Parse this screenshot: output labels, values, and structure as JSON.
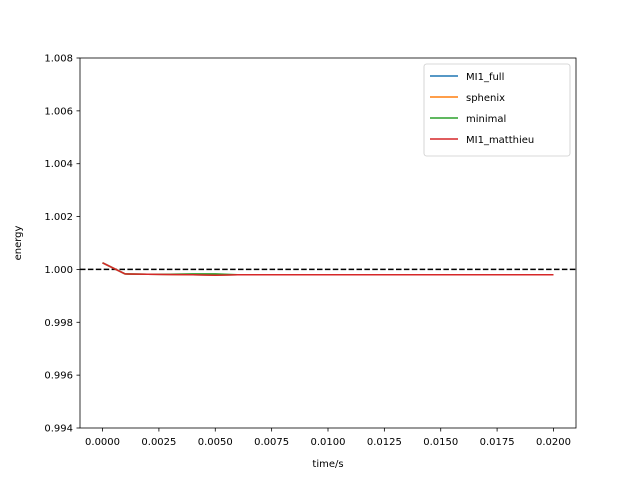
{
  "chart_data": {
    "type": "line",
    "title": "",
    "xlabel": "time/s",
    "ylabel": "energy",
    "xlim": [
      -0.001,
      0.021
    ],
    "ylim": [
      0.994,
      1.008
    ],
    "x_ticks": [
      0.0,
      0.0025,
      0.005,
      0.0075,
      0.01,
      0.0125,
      0.015,
      0.0175,
      0.02
    ],
    "x_tick_labels": [
      "0.0000",
      "0.0025",
      "0.0050",
      "0.0075",
      "0.0100",
      "0.0125",
      "0.0150",
      "0.0175",
      "0.0200"
    ],
    "y_ticks": [
      0.994,
      0.996,
      0.998,
      1.0,
      1.002,
      1.004,
      1.006,
      1.008
    ],
    "y_tick_labels": [
      "0.994",
      "0.996",
      "0.998",
      "1.000",
      "1.002",
      "1.004",
      "1.006",
      "1.008"
    ],
    "grid": false,
    "legend_position": "top-right",
    "reference_line": {
      "y": 1.0,
      "style": "dashed",
      "color": "#000000"
    },
    "series": [
      {
        "name": "MI1_full",
        "color": "#1f77b4",
        "x": [
          0.0,
          0.001,
          0.002,
          0.003,
          0.004,
          0.005,
          0.006,
          0.008,
          0.01,
          0.012,
          0.014,
          0.016,
          0.018,
          0.02
        ],
        "y": [
          1.00025,
          0.99983,
          0.99982,
          0.99981,
          0.9998,
          0.99979,
          0.9998,
          0.9998,
          0.9998,
          0.9998,
          0.9998,
          0.9998,
          0.9998,
          0.9998
        ]
      },
      {
        "name": "sphenix",
        "color": "#ff7f0e",
        "x": [
          0.0,
          0.001,
          0.002,
          0.003,
          0.004,
          0.005,
          0.006,
          0.008,
          0.01,
          0.012,
          0.014,
          0.016,
          0.018,
          0.02
        ],
        "y": [
          1.00025,
          0.99983,
          0.99982,
          0.99981,
          0.9998,
          0.99979,
          0.9998,
          0.9998,
          0.9998,
          0.9998,
          0.9998,
          0.9998,
          0.9998,
          0.9998
        ]
      },
      {
        "name": "minimal",
        "color": "#2ca02c",
        "x": [
          0.0,
          0.001,
          0.002,
          0.003,
          0.004,
          0.005,
          0.006,
          0.008,
          0.01,
          0.012,
          0.014,
          0.016,
          0.018,
          0.02
        ],
        "y": [
          1.00025,
          0.99983,
          0.99982,
          0.99982,
          0.99983,
          0.99983,
          0.9998,
          0.9998,
          0.9998,
          0.9998,
          0.9998,
          0.9998,
          0.9998,
          0.9998
        ]
      },
      {
        "name": "MI1_matthieu",
        "color": "#d62728",
        "x": [
          0.0,
          0.001,
          0.002,
          0.003,
          0.004,
          0.005,
          0.006,
          0.008,
          0.01,
          0.012,
          0.014,
          0.016,
          0.018,
          0.02
        ],
        "y": [
          1.00025,
          0.99983,
          0.99982,
          0.99981,
          0.9998,
          0.99978,
          0.9998,
          0.9998,
          0.9998,
          0.9998,
          0.9998,
          0.9998,
          0.9998,
          0.9998
        ]
      }
    ]
  }
}
